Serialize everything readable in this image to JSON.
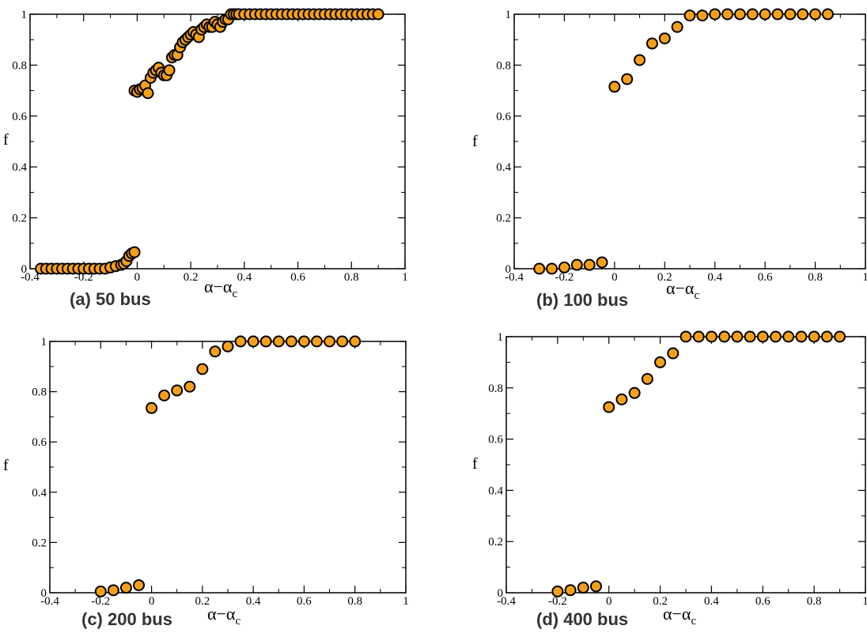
{
  "colors": {
    "marker_fill": "#f5a01a",
    "marker_stroke": "#000000",
    "axis": "#000000",
    "caption": "#333333"
  },
  "chart_data": [
    {
      "type": "scatter",
      "caption": "(a) 50 bus",
      "ylabel": "f",
      "xlabel_main": "α−α",
      "xlabel_sub": "c",
      "xlim": [
        -0.4,
        1
      ],
      "ylim": [
        0,
        1
      ],
      "xticks": [
        "-0.4",
        "-0.2",
        "0",
        "0.2",
        "0.4",
        "0.6",
        "0.8",
        "1"
      ],
      "yticks": [
        "0",
        "0.2",
        "0.4",
        "0.6",
        "0.8",
        "1"
      ],
      "grid": false,
      "x": [
        -0.36,
        -0.34,
        -0.32,
        -0.3,
        -0.28,
        -0.26,
        -0.24,
        -0.22,
        -0.2,
        -0.18,
        -0.16,
        -0.14,
        -0.12,
        -0.1,
        -0.08,
        -0.06,
        -0.05,
        -0.04,
        -0.03,
        -0.02,
        -0.01,
        -0.01,
        0.0,
        0.01,
        0.02,
        0.03,
        0.04,
        0.05,
        0.06,
        0.07,
        0.08,
        0.09,
        0.1,
        0.11,
        0.12,
        0.13,
        0.14,
        0.15,
        0.16,
        0.17,
        0.18,
        0.19,
        0.2,
        0.21,
        0.22,
        0.23,
        0.24,
        0.25,
        0.26,
        0.27,
        0.28,
        0.29,
        0.3,
        0.31,
        0.32,
        0.33,
        0.34,
        0.35,
        0.36,
        0.37,
        0.38,
        0.4,
        0.42,
        0.44,
        0.46,
        0.48,
        0.5,
        0.52,
        0.54,
        0.56,
        0.58,
        0.6,
        0.62,
        0.64,
        0.66,
        0.68,
        0.7,
        0.72,
        0.74,
        0.76,
        0.78,
        0.8,
        0.82,
        0.84,
        0.86,
        0.88,
        0.9
      ],
      "y": [
        0,
        0,
        0,
        0,
        0,
        0,
        0,
        0,
        0,
        0,
        0,
        0,
        0,
        0.005,
        0.01,
        0.015,
        0.02,
        0.03,
        0.05,
        0.06,
        0.065,
        0.7,
        0.695,
        0.705,
        0.71,
        0.72,
        0.69,
        0.75,
        0.77,
        0.78,
        0.79,
        0.77,
        0.76,
        0.76,
        0.78,
        0.83,
        0.84,
        0.84,
        0.87,
        0.89,
        0.9,
        0.91,
        0.92,
        0.93,
        0.92,
        0.91,
        0.94,
        0.95,
        0.96,
        0.95,
        0.95,
        0.97,
        0.96,
        0.95,
        0.97,
        0.98,
        0.98,
        1,
        1,
        1,
        1,
        1,
        1,
        1,
        1,
        1,
        1,
        1,
        1,
        1,
        1,
        1,
        1,
        1,
        1,
        1,
        1,
        1,
        1,
        1,
        1,
        1,
        1,
        1,
        1,
        1,
        1
      ]
    },
    {
      "type": "scatter",
      "caption": "(b) 100 bus",
      "ylabel": "f",
      "xlabel_main": "α−α",
      "xlabel_sub": "c",
      "xlim": [
        -0.4,
        1
      ],
      "ylim": [
        0,
        1
      ],
      "xticks": [
        "-0.4",
        "-0.2",
        "0",
        "0.2",
        "0.4",
        "0.6",
        "0.8",
        "1"
      ],
      "yticks": [
        "0",
        "0.2",
        "0.4",
        "0.6",
        "0.8",
        "1"
      ],
      "grid": false,
      "x": [
        -0.3,
        -0.25,
        -0.2,
        -0.15,
        -0.1,
        -0.05,
        0.0,
        0.05,
        0.1,
        0.15,
        0.2,
        0.25,
        0.3,
        0.35,
        0.4,
        0.45,
        0.5,
        0.55,
        0.6,
        0.65,
        0.7,
        0.75,
        0.8,
        0.85
      ],
      "y": [
        0.0,
        0.0,
        0.005,
        0.015,
        0.015,
        0.025,
        0.715,
        0.745,
        0.82,
        0.885,
        0.905,
        0.95,
        0.995,
        0.995,
        1,
        1,
        1,
        1,
        1,
        1,
        1,
        1,
        1,
        1
      ]
    },
    {
      "type": "scatter",
      "caption": "(c) 200 bus",
      "ylabel": "f",
      "xlabel_main": "α−α",
      "xlabel_sub": "c",
      "xlim": [
        -0.4,
        1
      ],
      "ylim": [
        0,
        1
      ],
      "xticks": [
        "-0.4",
        "-0.2",
        "0",
        "0.2",
        "0.4",
        "0.6",
        "0.8",
        "1"
      ],
      "yticks": [
        "0",
        "0.2",
        "0.4",
        "0.6",
        "0.8",
        "1"
      ],
      "grid": false,
      "x": [
        -0.2,
        -0.15,
        -0.1,
        -0.05,
        0.0,
        0.05,
        0.1,
        0.15,
        0.2,
        0.25,
        0.3,
        0.35,
        0.4,
        0.45,
        0.5,
        0.55,
        0.6,
        0.65,
        0.7,
        0.75,
        0.8
      ],
      "y": [
        0.005,
        0.01,
        0.02,
        0.03,
        0.735,
        0.785,
        0.805,
        0.82,
        0.89,
        0.96,
        0.98,
        1,
        1,
        1,
        1,
        1,
        1,
        1,
        1,
        1,
        1
      ]
    },
    {
      "type": "scatter",
      "caption": "(d) 400 bus",
      "ylabel": "f",
      "xlabel_main": "α−α",
      "xlabel_sub": "c",
      "xlim": [
        -0.4,
        1
      ],
      "ylim": [
        0,
        1
      ],
      "xticks": [
        "-0.4",
        "-0.2",
        "0",
        "0.2",
        "0.4",
        "0.6",
        "0.8",
        "1"
      ],
      "yticks": [
        "0",
        "0.2",
        "0.4",
        "0.6",
        "0.8",
        "1"
      ],
      "grid": false,
      "x": [
        -0.2,
        -0.15,
        -0.1,
        -0.05,
        0.0,
        0.05,
        0.1,
        0.15,
        0.2,
        0.25,
        0.3,
        0.35,
        0.4,
        0.45,
        0.5,
        0.55,
        0.6,
        0.65,
        0.7,
        0.75,
        0.8,
        0.85,
        0.9
      ],
      "y": [
        0.005,
        0.01,
        0.02,
        0.025,
        0.725,
        0.755,
        0.78,
        0.835,
        0.9,
        0.935,
        1,
        1,
        1,
        1,
        1,
        1,
        1,
        1,
        1,
        1,
        1,
        1,
        1
      ]
    }
  ]
}
